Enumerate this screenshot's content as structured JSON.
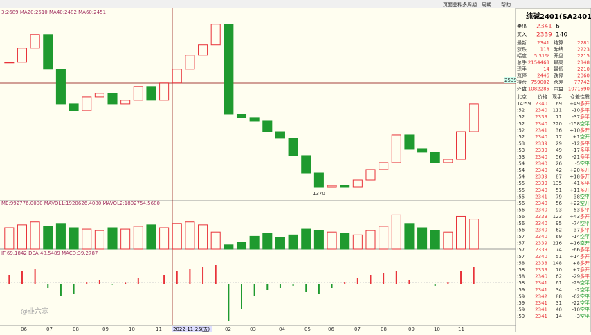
{
  "toolbar": {
    "items": [
      "页面品种",
      "多周期",
      "周期",
      "帮助"
    ]
  },
  "chart": {
    "main_label": "3:2689 MA20:2510 MA40:2482 MA60:2451",
    "vol_label": "ME:992776.0000 MAVOL1:1920626.4080 MAVOL2:1802754.5680",
    "macd_label": "IF:69.1842 DEA:48.5489 MACD:39.2787",
    "low_label": "1370",
    "right_marker": "2539",
    "cursor_date": "2022-11-25(五)",
    "watermark": "@韭六寒",
    "x_labels": [
      "06",
      "07",
      "08",
      "09",
      "10",
      "11",
      "02",
      "03",
      "04",
      "05",
      "06",
      "07",
      "08",
      "09",
      "10",
      "11"
    ],
    "ylim": [
      1260,
      3290
    ],
    "closes": [
      2722,
      2868,
      3014,
      2649,
      2283,
      2210,
      2356,
      2393,
      2283,
      2320,
      2466,
      2320,
      2503,
      2649,
      2795,
      2905,
      3124,
      2173,
      2137,
      2100,
      1990,
      1918,
      1735,
      1552,
      1406,
      1420,
      1406,
      1479,
      1589,
      1662,
      1954,
      1808,
      1772,
      1662,
      1698,
      1990,
      2283
    ],
    "vol_ylim": [
      0,
      3000000
    ],
    "volumes": [
      1500000,
      1700000,
      1900000,
      1600000,
      1800000,
      1500000,
      1400000,
      1300000,
      1500000,
      1400000,
      1600000,
      1700000,
      1500000,
      1800000,
      1900000,
      1700000,
      1200000,
      300000,
      500000,
      900000,
      1100000,
      800000,
      1000000,
      1400000,
      1300000,
      1200000,
      1100000,
      1000000,
      1300000,
      1600000,
      2400000,
      1800000,
      1500000,
      1300000,
      1200000,
      2300000,
      2100000
    ],
    "macd_ylim": [
      -200,
      150
    ],
    "macd": [
      40,
      60,
      70,
      -20,
      -60,
      -50,
      10,
      20,
      -5,
      5,
      30,
      0,
      40,
      60,
      70,
      80,
      90,
      -180,
      -120,
      -60,
      -30,
      -20,
      -10,
      -40,
      -50,
      -20,
      10,
      30,
      40,
      50,
      60,
      20,
      0,
      -10,
      10,
      60,
      80
    ]
  },
  "quote": {
    "title": "纯碱2401(SA2401)",
    "sell": [
      "卖出",
      "2341",
      "6"
    ],
    "buy": [
      "买入",
      "2339",
      "140"
    ],
    "rows": [
      [
        "最新",
        "2341",
        "结算",
        "2281"
      ],
      [
        "涨跌",
        "118",
        "昨结",
        "2223"
      ],
      [
        "幅度",
        "5.31%",
        "开盘",
        "2215"
      ],
      [
        "总手",
        "2154463",
        "最高",
        "2348"
      ],
      [
        "现手",
        "14",
        "最低",
        "2210"
      ],
      [
        "涨停",
        "2446",
        "跌停",
        "2060"
      ],
      [
        "持仓",
        "759002",
        "仓差",
        "77742"
      ],
      [
        "外盘",
        "1082285",
        "内盘",
        "1071590"
      ]
    ],
    "tick_header": [
      "北京",
      "价格",
      "现手",
      "仓差",
      "性质"
    ],
    "ticks": [
      [
        "14:59",
        "2340",
        "69",
        "+49",
        "多开"
      ],
      [
        ":52",
        "2340",
        "111",
        "-10",
        "多平"
      ],
      [
        ":52",
        "2339",
        "71",
        "-37",
        "多平"
      ],
      [
        ":52",
        "2340",
        "220",
        "-158",
        "空平"
      ],
      [
        ":52",
        "2341",
        "36",
        "+10",
        "多开"
      ],
      [
        ":52",
        "2340",
        "77",
        "+1",
        "空开"
      ],
      [
        ":53",
        "2339",
        "29",
        "-12",
        "多平"
      ],
      [
        ":53",
        "2339",
        "49",
        "-17",
        "多平"
      ],
      [
        ":53",
        "2340",
        "56",
        "-21",
        "多平"
      ],
      [
        ":54",
        "2340",
        "26",
        "-5",
        "空平"
      ],
      [
        ":54",
        "2340",
        "42",
        "+20",
        "多开"
      ],
      [
        ":54",
        "2339",
        "87",
        "+18",
        "多开"
      ],
      [
        ":55",
        "2339",
        "135",
        "-41",
        "多平"
      ],
      [
        ":55",
        "2340",
        "51",
        "+11",
        "多开"
      ],
      [
        ":55",
        "2341",
        "79",
        "-38",
        "空平"
      ],
      [
        ":56",
        "2340",
        "56",
        "+22",
        "空开"
      ],
      [
        ":56",
        "2340",
        "93",
        "-53",
        "多平"
      ],
      [
        ":56",
        "2339",
        "123",
        "+43",
        "多开"
      ],
      [
        ":56",
        "2340",
        "95",
        "-74",
        "空平"
      ],
      [
        ":56",
        "2340",
        "62",
        "-37",
        "多平"
      ],
      [
        ":57",
        "2340",
        "69",
        "-14",
        "空平"
      ],
      [
        ":57",
        "2339",
        "216",
        "+16",
        "空开"
      ],
      [
        ":57",
        "2339",
        "74",
        "-66",
        "多平"
      ],
      [
        ":57",
        "2340",
        "51",
        "+14",
        "多开"
      ],
      [
        ":58",
        "2338",
        "148",
        "+8",
        "多开"
      ],
      [
        ":58",
        "2339",
        "70",
        "+7",
        "多开"
      ],
      [
        ":58",
        "2340",
        "62",
        "-29",
        "多平"
      ],
      [
        ":58",
        "2341",
        "61",
        "-29",
        "空平"
      ],
      [
        ":59",
        "2341",
        "34",
        "-2",
        "空平"
      ],
      [
        ":59",
        "2342",
        "88",
        "-62",
        "空平"
      ],
      [
        ":59",
        "2341",
        "31",
        "-22",
        "空平"
      ],
      [
        ":59",
        "2341",
        "40",
        "-10",
        "空平"
      ],
      [
        ":59",
        "2341",
        "14",
        "-3",
        "空平"
      ]
    ]
  }
}
